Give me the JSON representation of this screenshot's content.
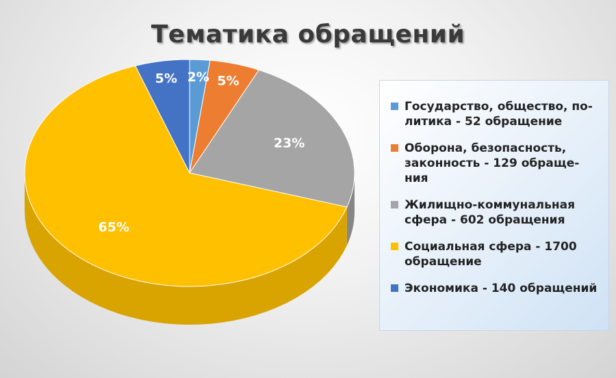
{
  "chart_data": {
    "type": "pie",
    "title": "Тематика обращений",
    "categories": [
      "Государство, общество, политика - 52 обращение",
      "Оборона, безопасность, законность - 129 обращения",
      "Жилищно-коммунальная сфера  - 602 обращения",
      "Социальная сфера -  1700 обращение",
      "Экономика - 140 обращений"
    ],
    "values": [
      52,
      129,
      602,
      1700,
      140
    ],
    "percent_labels": [
      "2%",
      "5%",
      "23%",
      "65%",
      "5%"
    ],
    "colors": [
      "#5b9bd5",
      "#ed7d31",
      "#a5a5a5",
      "#ffc000",
      "#4472c4"
    ],
    "side_colors": [
      "#3f7ab0",
      "#c0601e",
      "#868686",
      "#d9a300",
      "#2f5597"
    ],
    "legend": {
      "position": "right",
      "items": [
        {
          "label_lines": [
            "Государство, общество, по-",
            "литика - 52 обращение"
          ]
        },
        {
          "label_lines": [
            "Оборона, безопасность,",
            "законность - 129 обраще-",
            "ния"
          ]
        },
        {
          "label_lines": [
            "Жилищно-коммунальная",
            "сфера  - 602 обращения"
          ]
        },
        {
          "label_lines": [
            "Социальная сфера -  1700",
            "обращение"
          ]
        },
        {
          "label_lines": [
            "Экономика - 140 обращений"
          ]
        }
      ]
    }
  }
}
